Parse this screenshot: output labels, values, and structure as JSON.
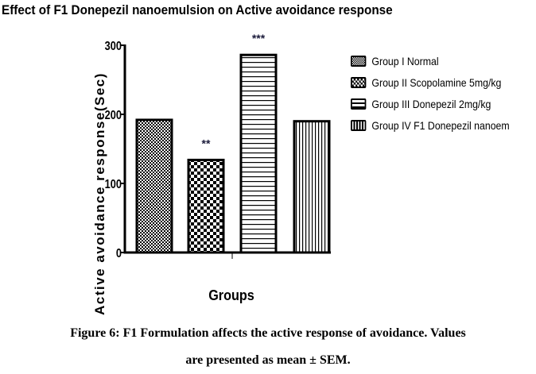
{
  "chart_data": {
    "type": "bar",
    "title": "Effect of F1 Donepezil nanoemulsion on Active avoidance response",
    "xlabel": "Groups",
    "ylabel": "Active avoidance response(Sec)",
    "ylim": [
      0,
      300
    ],
    "yticks": [
      "0",
      "100",
      "200",
      "300"
    ],
    "categories": [
      "Group I Normal",
      "Group II Scopolamine 5mg/kg",
      "Group III Donepezil 2mg/kg",
      "Group IV F1 Donepezil nanoem"
    ],
    "values": [
      192,
      134,
      286,
      190
    ],
    "annotations": [
      "",
      "**",
      "***",
      ""
    ],
    "legend_position": "right",
    "grid": false
  },
  "caption": {
    "line1": "Figure  6: F1 Formulation  affects the active response of avoidance. Values",
    "line2": "are presented as mean ± SEM."
  }
}
